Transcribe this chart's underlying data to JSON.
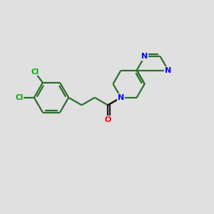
{
  "background_color": "#e0e0e0",
  "bond_color": "#2d6e2d",
  "dark_bond_color": "#1a1a1a",
  "atom_colors": {
    "Cl": "#00aa00",
    "O": "#ff0000",
    "N": "#0000ff",
    "C": "#2d6e2d"
  },
  "figsize": [
    3.0,
    3.0
  ],
  "dpi": 100
}
